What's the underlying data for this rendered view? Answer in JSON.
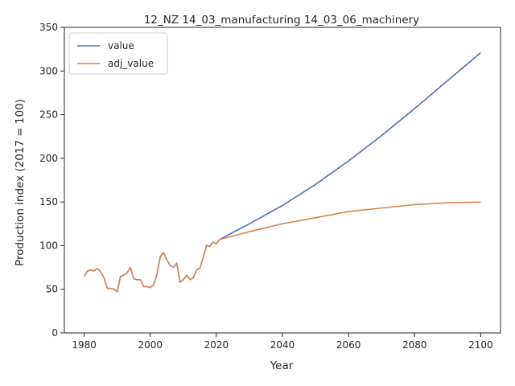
{
  "chart_data": {
    "type": "line",
    "title": "12_NZ 14_03_manufacturing 14_03_06_machinery",
    "xlabel": "Year",
    "ylabel": "Production index (2017 = 100)",
    "xlim": [
      1974,
      2106
    ],
    "ylim": [
      0,
      350
    ],
    "xticks": [
      1980,
      2000,
      2020,
      2040,
      2060,
      2080,
      2100
    ],
    "yticks": [
      0,
      50,
      100,
      150,
      200,
      250,
      300,
      350
    ],
    "grid": false,
    "legend_position": "top-left",
    "series": [
      {
        "name": "value",
        "color": "#4c72b0",
        "points": [
          [
            1980,
            65
          ],
          [
            1981,
            71
          ],
          [
            1982,
            72
          ],
          [
            1983,
            71
          ],
          [
            1984,
            74
          ],
          [
            1985,
            70
          ],
          [
            1986,
            63
          ],
          [
            1987,
            51
          ],
          [
            1988,
            51
          ],
          [
            1989,
            50
          ],
          [
            1990,
            47
          ],
          [
            1991,
            65
          ],
          [
            1992,
            66
          ],
          [
            1993,
            69
          ],
          [
            1994,
            75
          ],
          [
            1995,
            62
          ],
          [
            1996,
            61
          ],
          [
            1997,
            61
          ],
          [
            1998,
            53
          ],
          [
            1999,
            53
          ],
          [
            2000,
            52
          ],
          [
            2001,
            55
          ],
          [
            2002,
            67
          ],
          [
            2003,
            87
          ],
          [
            2004,
            92
          ],
          [
            2005,
            84
          ],
          [
            2006,
            77
          ],
          [
            2007,
            75
          ],
          [
            2008,
            80
          ],
          [
            2009,
            58
          ],
          [
            2010,
            61
          ],
          [
            2011,
            66
          ],
          [
            2012,
            61
          ],
          [
            2013,
            63
          ],
          [
            2014,
            72
          ],
          [
            2015,
            74
          ],
          [
            2016,
            86
          ],
          [
            2017,
            100
          ],
          [
            2018,
            99
          ],
          [
            2019,
            104
          ],
          [
            2020,
            102
          ],
          [
            2021,
            107
          ],
          [
            2025,
            115
          ],
          [
            2030,
            125
          ],
          [
            2040,
            146
          ],
          [
            2050,
            170
          ],
          [
            2060,
            197
          ],
          [
            2070,
            226
          ],
          [
            2080,
            257
          ],
          [
            2090,
            289
          ],
          [
            2100,
            321
          ]
        ]
      },
      {
        "name": "adj_value",
        "color": "#dd8452",
        "points": [
          [
            1980,
            65
          ],
          [
            1981,
            71
          ],
          [
            1982,
            72
          ],
          [
            1983,
            71
          ],
          [
            1984,
            74
          ],
          [
            1985,
            70
          ],
          [
            1986,
            63
          ],
          [
            1987,
            51
          ],
          [
            1988,
            51
          ],
          [
            1989,
            50
          ],
          [
            1990,
            47
          ],
          [
            1991,
            65
          ],
          [
            1992,
            66
          ],
          [
            1993,
            69
          ],
          [
            1994,
            75
          ],
          [
            1995,
            62
          ],
          [
            1996,
            61
          ],
          [
            1997,
            61
          ],
          [
            1998,
            53
          ],
          [
            1999,
            53
          ],
          [
            2000,
            52
          ],
          [
            2001,
            55
          ],
          [
            2002,
            67
          ],
          [
            2003,
            87
          ],
          [
            2004,
            92
          ],
          [
            2005,
            84
          ],
          [
            2006,
            77
          ],
          [
            2007,
            75
          ],
          [
            2008,
            80
          ],
          [
            2009,
            58
          ],
          [
            2010,
            61
          ],
          [
            2011,
            66
          ],
          [
            2012,
            61
          ],
          [
            2013,
            63
          ],
          [
            2014,
            72
          ],
          [
            2015,
            74
          ],
          [
            2016,
            86
          ],
          [
            2017,
            100
          ],
          [
            2018,
            99
          ],
          [
            2019,
            104
          ],
          [
            2020,
            102
          ],
          [
            2021,
            107
          ],
          [
            2025,
            111
          ],
          [
            2030,
            116
          ],
          [
            2040,
            125
          ],
          [
            2050,
            132
          ],
          [
            2060,
            139
          ],
          [
            2070,
            143
          ],
          [
            2080,
            147
          ],
          [
            2090,
            149
          ],
          [
            2100,
            150
          ]
        ]
      }
    ]
  }
}
